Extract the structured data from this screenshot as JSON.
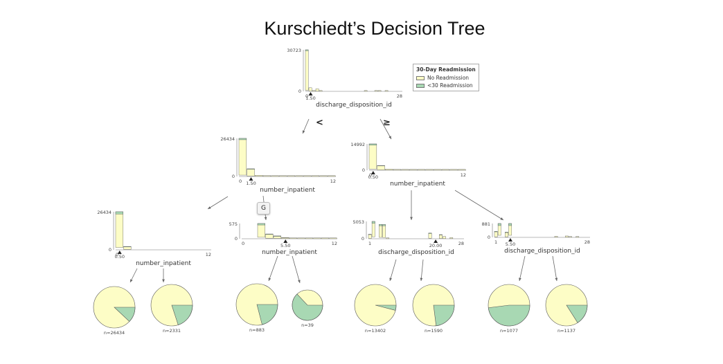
{
  "title": "Kurschiedt’s Decision Tree",
  "colors": {
    "no": "#fdfdc6",
    "yes": "#a8d8b3",
    "edge": "#666666"
  },
  "legend": {
    "title": "30-Day Readmission",
    "items": [
      "No Readmission",
      "<30 Readmission"
    ]
  },
  "hover_badge": "G",
  "operators": {
    "left": "<",
    "right": "≥"
  },
  "nodes": [
    {
      "id": "root",
      "feature": "discharge_disposition_id",
      "y_max": "30723",
      "x_min": "0",
      "x_max": "28",
      "split": "1.50",
      "xmin": 0,
      "xmax": 28,
      "split_value": 1.5,
      "bars": [
        [
          30000,
          723
        ],
        [
          2500,
          150
        ],
        [
          200,
          10
        ],
        [
          1800,
          80
        ],
        [
          100,
          10
        ],
        [
          0,
          0
        ],
        [
          0,
          0
        ],
        [
          0,
          0
        ],
        [
          0,
          0
        ],
        [
          0,
          0
        ],
        [
          0,
          0
        ],
        [
          0,
          0
        ],
        [
          0,
          0
        ],
        [
          0,
          0
        ],
        [
          0,
          0
        ],
        [
          0,
          0
        ],
        [
          0,
          0
        ],
        [
          300,
          20
        ],
        [
          0,
          0
        ],
        [
          0,
          0
        ],
        [
          200,
          15
        ],
        [
          100,
          10
        ],
        [
          0,
          0
        ],
        [
          50,
          5
        ],
        [
          0,
          0
        ],
        [
          0,
          0
        ],
        [
          0,
          0
        ],
        [
          0,
          0
        ]
      ]
    },
    {
      "id": "L",
      "feature": "number_inpatient",
      "y_max": "26434",
      "x_min": "0",
      "x_max": "12",
      "split": "1.50",
      "xmin": 0,
      "xmax": 12,
      "split_value": 1.5,
      "bars": [
        [
          25500,
          934
        ],
        [
          5000,
          300
        ],
        [
          800,
          60
        ],
        [
          400,
          30
        ],
        [
          150,
          15
        ],
        [
          100,
          10
        ],
        [
          60,
          5
        ],
        [
          40,
          4
        ],
        [
          30,
          3
        ],
        [
          20,
          2
        ],
        [
          10,
          1
        ],
        [
          5,
          1
        ]
      ]
    },
    {
      "id": "R",
      "feature": "number_inpatient",
      "y_max": "14992",
      "x_min": "0",
      "x_max": "12",
      "split": "0.50",
      "xmin": 0,
      "xmax": 12,
      "split_value": 0.5,
      "bars": [
        [
          14300,
          692
        ],
        [
          2500,
          200
        ],
        [
          600,
          50
        ],
        [
          300,
          25
        ],
        [
          150,
          15
        ],
        [
          80,
          8
        ],
        [
          40,
          4
        ],
        [
          20,
          2
        ],
        [
          10,
          1
        ],
        [
          5,
          1
        ],
        [
          3,
          1
        ],
        [
          2,
          1
        ]
      ]
    },
    {
      "id": "LL",
      "feature": "number_inpatient",
      "y_max": "26434",
      "x_min": "0",
      "x_max": "12",
      "split": "0.50",
      "xmin": 0,
      "xmax": 12,
      "split_value": 0.5,
      "bars": [
        [
          24800,
          1634
        ],
        [
          2000,
          331
        ],
        [
          0,
          0
        ],
        [
          0,
          0
        ],
        [
          0,
          0
        ],
        [
          0,
          0
        ],
        [
          0,
          0
        ],
        [
          0,
          0
        ],
        [
          0,
          0
        ],
        [
          0,
          0
        ],
        [
          0,
          0
        ],
        [
          0,
          0
        ]
      ]
    },
    {
      "id": "LR",
      "feature": "number_inpatient",
      "y_max": "575",
      "x_min": "0",
      "x_max": "12",
      "split": "5.50",
      "xmin": 0,
      "xmax": 12,
      "split_value": 5.5,
      "bars": [
        [
          0,
          0
        ],
        [
          0,
          0
        ],
        [
          520,
          55
        ],
        [
          160,
          20
        ],
        [
          90,
          15
        ],
        [
          40,
          8
        ],
        [
          20,
          5
        ],
        [
          10,
          3
        ],
        [
          5,
          2
        ],
        [
          3,
          1
        ],
        [
          2,
          1
        ],
        [
          1,
          1
        ]
      ]
    },
    {
      "id": "RL",
      "feature": "discharge_disposition_id",
      "y_max": "5053",
      "x_min": "1",
      "x_max": "28",
      "split": "20.00",
      "xmin": 1,
      "xmax": 28,
      "split_value": 20,
      "bars": [
        [
          1200,
          100
        ],
        [
          4500,
          553
        ],
        [
          0,
          0
        ],
        [
          3800,
          400
        ],
        [
          3800,
          350
        ],
        [
          100,
          10
        ],
        [
          0,
          0
        ],
        [
          0,
          0
        ],
        [
          0,
          0
        ],
        [
          0,
          0
        ],
        [
          0,
          0
        ],
        [
          0,
          0
        ],
        [
          0,
          0
        ],
        [
          0,
          0
        ],
        [
          0,
          0
        ],
        [
          0,
          0
        ],
        [
          0,
          0
        ],
        [
          1500,
          150
        ],
        [
          0,
          0
        ],
        [
          0,
          0
        ],
        [
          1100,
          100
        ],
        [
          600,
          50
        ],
        [
          0,
          0
        ],
        [
          300,
          30
        ],
        [
          0,
          0
        ],
        [
          0,
          0
        ],
        [
          0,
          0
        ]
      ]
    },
    {
      "id": "RR",
      "feature": "discharge_disposition_id",
      "y_max": "881",
      "x_min": "1",
      "x_max": "28",
      "split": "5.50",
      "xmin": 1,
      "xmax": 28,
      "split_value": 5.5,
      "bars": [
        [
          350,
          30
        ],
        [
          750,
          131
        ],
        [
          0,
          0
        ],
        [
          300,
          30
        ],
        [
          750,
          131
        ],
        [
          0,
          0
        ],
        [
          0,
          0
        ],
        [
          0,
          0
        ],
        [
          0,
          0
        ],
        [
          0,
          0
        ],
        [
          0,
          0
        ],
        [
          0,
          0
        ],
        [
          0,
          0
        ],
        [
          0,
          0
        ],
        [
          0,
          0
        ],
        [
          0,
          0
        ],
        [
          0,
          0
        ],
        [
          60,
          8
        ],
        [
          0,
          0
        ],
        [
          0,
          0
        ],
        [
          80,
          10
        ],
        [
          40,
          5
        ],
        [
          0,
          0
        ],
        [
          30,
          4
        ],
        [
          0,
          0
        ],
        [
          0,
          0
        ],
        [
          0,
          0
        ]
      ]
    }
  ],
  "leaves": [
    {
      "label": "n=26434",
      "no": 0.88,
      "yes": 0.12
    },
    {
      "label": "n=2331",
      "no": 0.8,
      "yes": 0.2
    },
    {
      "label": "n=883",
      "no": 0.79,
      "yes": 0.21
    },
    {
      "label": "n=39",
      "no": 0.37,
      "yes": 0.63
    },
    {
      "label": "n=13402",
      "no": 0.96,
      "yes": 0.04
    },
    {
      "label": "n=1590",
      "no": 0.77,
      "yes": 0.23
    },
    {
      "label": "n=1077",
      "no": 0.52,
      "yes": 0.48
    },
    {
      "label": "n=1137",
      "no": 0.84,
      "yes": 0.16
    }
  ]
}
